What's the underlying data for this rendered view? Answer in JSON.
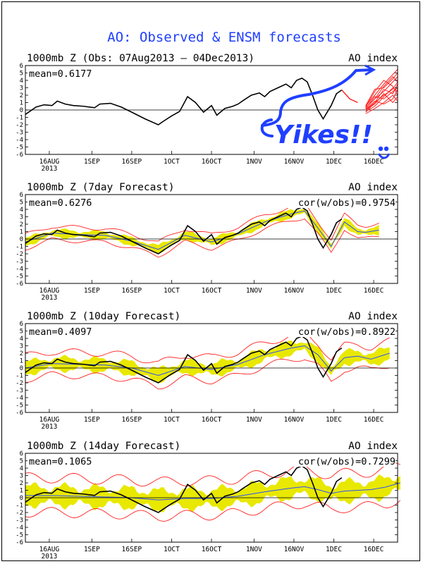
{
  "page": {
    "title": "AO: Observed & ENSM forecasts",
    "annotation": "Yikes!!"
  },
  "colors": {
    "title": "#1f3fff",
    "observed": "#000000",
    "ensemble_mean": "#3050ff",
    "spread": "#e8e800",
    "members": "#ff2020",
    "annotation": "#1f3fff"
  },
  "xaxis": {
    "ticks": [
      "16AUG",
      "1SEP",
      "16SEP",
      "1OCT",
      "16OCT",
      "1NOV",
      "16NOV",
      "1DEC",
      "16DEC"
    ],
    "year_label": "2013"
  },
  "yaxis": {
    "ticks": [
      "6",
      "5",
      "4",
      "3",
      "2",
      "1",
      "0",
      "-1",
      "-2",
      "-3",
      "-4",
      "-5",
      "-6"
    ]
  },
  "panels": [
    {
      "title": "1000mb Z (Obs: 07Aug2013 – 04Dec2013)",
      "index_label": "AO index",
      "mean_label": "mean=0.6177",
      "cor_label": ""
    },
    {
      "title": "1000mb Z (7day Forecast)",
      "index_label": "AO index",
      "mean_label": "mean=0.6276",
      "cor_label": "cor(w/obs)=0.9754"
    },
    {
      "title": "1000mb Z (10day Forecast)",
      "index_label": "AO index",
      "mean_label": "mean=0.4097",
      "cor_label": "cor(w/obs)=0.8922"
    },
    {
      "title": "1000mb Z (14day Forecast)",
      "index_label": "AO index",
      "mean_label": "mean=0.1065",
      "cor_label": "cor(w/obs)=0.7299"
    }
  ],
  "chart_data": {
    "type": "line",
    "x_unit": "day offset from 07Aug2013",
    "ylim": [
      -6,
      6
    ],
    "observed": {
      "x": [
        0,
        4,
        7,
        10,
        12,
        15,
        18,
        22,
        26,
        28,
        32,
        36,
        40,
        45,
        50,
        52,
        55,
        58,
        61,
        64,
        67,
        70,
        72,
        75,
        78,
        80,
        82,
        85,
        88,
        90,
        92,
        95,
        98,
        100,
        102,
        104,
        106,
        108,
        110,
        112,
        115,
        117,
        119
      ],
      "y": [
        -0.6,
        0.4,
        0.7,
        0.6,
        1.2,
        0.8,
        0.6,
        0.5,
        0.3,
        0.8,
        0.9,
        0.4,
        -0.3,
        -1.2,
        -2.0,
        -1.5,
        -0.8,
        -0.2,
        1.8,
        1.0,
        -0.3,
        0.6,
        -0.7,
        0.2,
        0.5,
        0.8,
        1.3,
        2.0,
        2.3,
        1.8,
        2.5,
        3.0,
        3.5,
        3.0,
        4.0,
        4.3,
        3.8,
        2.0,
        0.0,
        -1.2,
        0.6,
        2.2,
        2.7
      ]
    },
    "observed_tail": {
      "x": [
        119,
        122,
        125
      ],
      "y": [
        2.7,
        1.5,
        1.0
      ]
    },
    "ens_start": 128,
    "ens_end": 145,
    "ens_members": [
      [
        0.5,
        2.0,
        3.5,
        4.8,
        5.5,
        6.0
      ],
      [
        0.3,
        1.5,
        2.5,
        3.8,
        4.5,
        5.0
      ],
      [
        0.0,
        1.0,
        2.8,
        2.2,
        3.5,
        4.2
      ],
      [
        -0.2,
        0.5,
        1.8,
        3.0,
        2.5,
        3.5
      ],
      [
        0.2,
        1.8,
        1.5,
        2.5,
        3.0,
        2.2
      ],
      [
        0.4,
        2.5,
        4.0,
        3.2,
        2.0,
        3.0
      ],
      [
        0.1,
        1.2,
        0.8,
        1.5,
        2.8,
        1.8
      ],
      [
        -0.5,
        0.2,
        1.0,
        2.0,
        1.2,
        2.5
      ],
      [
        0.6,
        2.8,
        3.0,
        4.2,
        5.0,
        4.0
      ],
      [
        0.0,
        0.8,
        2.2,
        1.0,
        1.8,
        0.8
      ],
      [
        -0.3,
        1.0,
        2.0,
        2.8,
        3.8,
        3.2
      ],
      [
        0.3,
        1.5,
        3.2,
        4.5,
        3.8,
        4.8
      ]
    ],
    "forecasts": [
      {
        "mean": {
          "x": [
            0,
            10,
            20,
            30,
            40,
            50,
            60,
            70,
            80,
            90,
            100,
            105,
            110,
            115,
            120,
            125,
            128,
            133
          ],
          "y": [
            -0.4,
            0.8,
            0.6,
            0.5,
            -0.3,
            -1.4,
            0.5,
            -0.4,
            0.7,
            2.3,
            3.4,
            3.8,
            1.5,
            -1.0,
            2.3,
            1.0,
            0.9,
            1.2
          ]
        },
        "spread": 0.6,
        "member_spread": 1.1,
        "forecast_end": 133
      },
      {
        "mean": {
          "x": [
            0,
            10,
            20,
            30,
            40,
            50,
            60,
            70,
            80,
            90,
            100,
            105,
            110,
            115,
            120,
            125,
            130,
            137
          ],
          "y": [
            0.0,
            0.6,
            0.5,
            0.4,
            0.0,
            -1.0,
            0.2,
            -0.2,
            0.5,
            1.8,
            2.7,
            3.0,
            1.8,
            -0.4,
            1.4,
            1.6,
            1.2,
            2.0
          ]
        },
        "spread": 1.0,
        "member_spread": 1.9,
        "forecast_end": 137
      },
      {
        "mean": {
          "x": [
            0,
            10,
            20,
            30,
            40,
            50,
            60,
            70,
            80,
            90,
            100,
            105,
            110,
            115,
            120,
            125,
            130,
            135,
            141
          ],
          "y": [
            0.3,
            0.3,
            0.2,
            0.1,
            0.0,
            -0.3,
            -0.1,
            -0.1,
            0.2,
            0.8,
            1.3,
            1.5,
            1.1,
            0.6,
            0.9,
            1.0,
            1.1,
            1.4,
            2.0
          ]
        },
        "spread": 1.5,
        "member_spread": 2.8,
        "forecast_end": 141
      }
    ]
  }
}
